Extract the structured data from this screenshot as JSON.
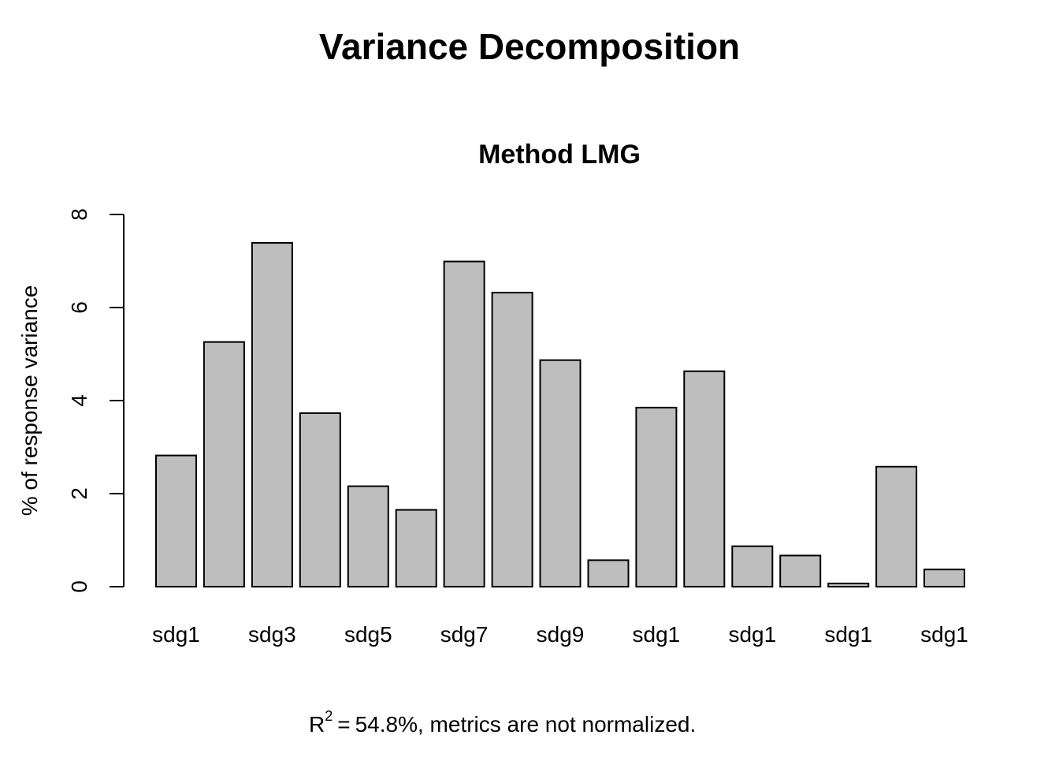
{
  "chart_data": {
    "type": "bar",
    "title": "Variance Decomposition",
    "subtitle": "Method LMG",
    "ylabel": "% of response variance",
    "xlabel": "",
    "ylim": [
      0,
      8
    ],
    "yticks": [
      0,
      2,
      4,
      6,
      8
    ],
    "grid": false,
    "legend": "none",
    "bar_color": "#bebebe",
    "edge_color": "#000000",
    "x_tick_labels": [
      "sdg1",
      "sdg3",
      "sdg5",
      "sdg7",
      "sdg9",
      "sdg1",
      "sdg1",
      "sdg1",
      "sdg1"
    ],
    "values": [
      2.82,
      5.26,
      7.39,
      3.73,
      2.16,
      1.65,
      6.99,
      6.32,
      4.87,
      0.57,
      3.85,
      4.63,
      0.87,
      0.67,
      0.07,
      2.58,
      0.37
    ],
    "footnote": {
      "r_symbol": "R",
      "r_exponent": "2",
      "equals": "=",
      "text": "54.8%, metrics are not normalized."
    }
  }
}
